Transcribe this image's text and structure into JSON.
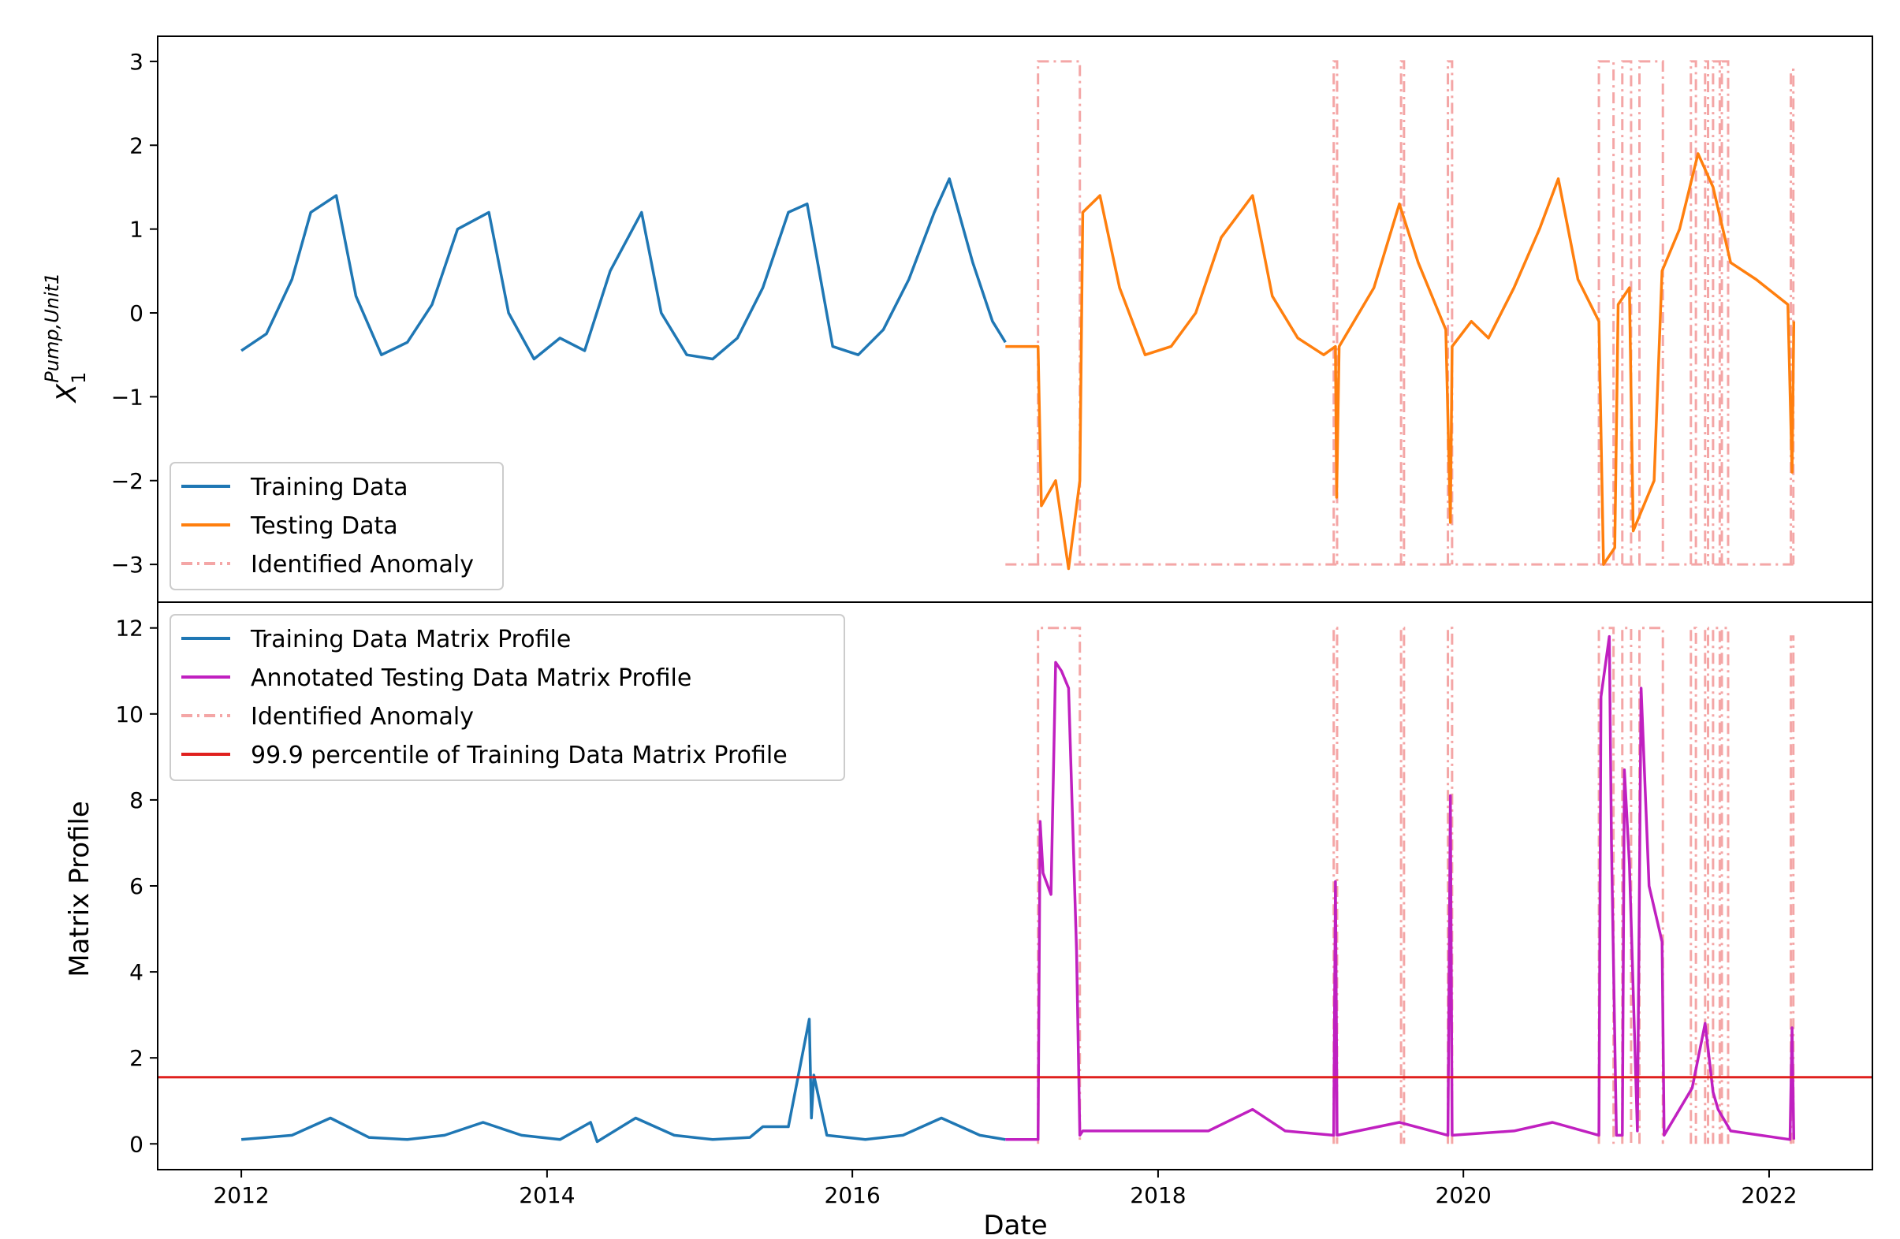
{
  "colors": {
    "training": "#1f77b4",
    "testing": "#ff7f0e",
    "annotated": "#c020c0",
    "anomaly": "#f4a6a6",
    "threshold": "#e0201e"
  },
  "chart_data": [
    {
      "type": "line",
      "panel": "top",
      "xlabel": "",
      "ylabel": "X₁^{Pump,Unit1}",
      "ylabel_base": "X",
      "ylabel_sub": "1",
      "ylabel_sup": "Pump,Unit1",
      "xlim": [
        "2011-06-15",
        "2022-09-05"
      ],
      "ylim": [
        -3.45,
        3.3
      ],
      "yticks": [
        {
          "value": -3,
          "label": "−3"
        },
        {
          "value": -2,
          "label": "−2"
        },
        {
          "value": -1,
          "label": "−1"
        },
        {
          "value": 0,
          "label": "0"
        },
        {
          "value": 1,
          "label": "1"
        },
        {
          "value": 2,
          "label": "2"
        },
        {
          "value": 3,
          "label": "3"
        }
      ],
      "legend_position": "lower-left",
      "legend": [
        {
          "label": "Training Data",
          "style": "solid",
          "color_key": "training"
        },
        {
          "label": "Testing Data",
          "style": "solid",
          "color_key": "testing"
        },
        {
          "label": "Identified Anomaly",
          "style": "dashdot",
          "color_key": "anomaly"
        }
      ],
      "series": [
        {
          "name": "Training Data",
          "color_key": "training",
          "x": [
            "2012-01-01",
            "2012-03-01",
            "2012-05-01",
            "2012-06-15",
            "2012-08-15",
            "2012-10-01",
            "2012-12-01",
            "2013-02-01",
            "2013-04-01",
            "2013-06-01",
            "2013-08-15",
            "2013-10-01",
            "2013-12-01",
            "2014-02-01",
            "2014-04-01",
            "2014-06-01",
            "2014-08-15",
            "2014-10-01",
            "2014-12-01",
            "2015-02-01",
            "2015-04-01",
            "2015-06-01",
            "2015-08-01",
            "2015-09-15",
            "2015-11-15",
            "2016-01-15",
            "2016-03-15",
            "2016-05-15",
            "2016-07-15",
            "2016-08-20",
            "2016-10-15",
            "2016-12-01",
            "2017-01-01"
          ],
          "y": [
            -0.45,
            -0.25,
            0.4,
            1.2,
            1.4,
            0.2,
            -0.5,
            -0.35,
            0.1,
            1.0,
            1.2,
            0.0,
            -0.55,
            -0.3,
            -0.45,
            0.5,
            1.2,
            0.0,
            -0.5,
            -0.55,
            -0.3,
            0.3,
            1.2,
            1.3,
            -0.4,
            -0.5,
            -0.2,
            0.4,
            1.2,
            1.6,
            0.6,
            -0.1,
            -0.35
          ]
        },
        {
          "name": "Testing Data",
          "color_key": "testing",
          "x": [
            "2017-01-01",
            "2017-03-20",
            "2017-03-28",
            "2017-05-01",
            "2017-06-01",
            "2017-06-28",
            "2017-07-05",
            "2017-08-15",
            "2017-10-01",
            "2017-12-01",
            "2018-02-01",
            "2018-04-01",
            "2018-06-01",
            "2018-08-15",
            "2018-10-01",
            "2018-12-01",
            "2019-02-01",
            "2019-03-01",
            "2019-03-04",
            "2019-03-10",
            "2019-06-01",
            "2019-08-01",
            "2019-09-15",
            "2019-11-20",
            "2019-12-01",
            "2019-12-05",
            "2020-01-20",
            "2020-03-01",
            "2020-05-01",
            "2020-07-01",
            "2020-08-15",
            "2020-10-01",
            "2020-11-20",
            "2020-12-01",
            "2020-12-28",
            "2021-01-05",
            "2021-02-01",
            "2021-02-10",
            "2021-04-01",
            "2021-04-20",
            "2021-06-01",
            "2021-07-15",
            "2021-08-20",
            "2021-10-01",
            "2021-12-01",
            "2022-02-15",
            "2022-02-25",
            "2022-03-01"
          ],
          "y": [
            -0.4,
            -0.4,
            -2.3,
            -2.0,
            -3.05,
            -2.0,
            1.2,
            1.4,
            0.3,
            -0.5,
            -0.4,
            0.0,
            0.9,
            1.4,
            0.2,
            -0.3,
            -0.5,
            -0.4,
            -2.2,
            -0.4,
            0.3,
            1.3,
            0.6,
            -0.2,
            -2.5,
            -0.4,
            -0.1,
            -0.3,
            0.3,
            1.0,
            1.6,
            0.4,
            -0.1,
            -3.0,
            -2.8,
            0.1,
            0.3,
            -2.6,
            -2.0,
            0.5,
            1.0,
            1.9,
            1.5,
            0.6,
            0.4,
            0.1,
            -1.9,
            -0.1
          ]
        }
      ],
      "anomaly_windows": [
        {
          "start": "2017-03-20",
          "end": "2017-06-28",
          "top": 3.0
        },
        {
          "start": "2019-02-25",
          "end": "2019-03-05",
          "top": 3.0
        },
        {
          "start": "2019-08-05",
          "end": "2019-08-12",
          "top": 3.0
        },
        {
          "start": "2019-11-25",
          "end": "2019-12-05",
          "top": 3.0
        },
        {
          "start": "2020-11-20",
          "end": "2020-12-25",
          "top": 3.0
        },
        {
          "start": "2021-01-15",
          "end": "2021-02-05",
          "top": 3.0
        },
        {
          "start": "2021-02-25",
          "end": "2021-04-22",
          "top": 3.0
        },
        {
          "start": "2021-06-28",
          "end": "2021-07-10",
          "top": 3.0
        },
        {
          "start": "2021-08-01",
          "end": "2021-08-08",
          "top": 3.0
        },
        {
          "start": "2021-08-20",
          "end": "2021-09-05",
          "top": 3.0
        },
        {
          "start": "2021-09-10",
          "end": "2021-09-25",
          "top": 3.0
        },
        {
          "start": "2022-02-22",
          "end": "2022-02-28",
          "top": 2.9
        }
      ],
      "anomaly_baseline": -3.0
    },
    {
      "type": "line",
      "panel": "bottom",
      "xlabel": "Date",
      "ylabel": "Matrix Profile",
      "xlim": [
        "2011-06-15",
        "2022-09-05"
      ],
      "ylim": [
        -0.6,
        12.6
      ],
      "xticks": [
        {
          "value": "2012-01-01",
          "label": "2012"
        },
        {
          "value": "2014-01-01",
          "label": "2014"
        },
        {
          "value": "2016-01-01",
          "label": "2016"
        },
        {
          "value": "2018-01-01",
          "label": "2018"
        },
        {
          "value": "2020-01-01",
          "label": "2020"
        },
        {
          "value": "2022-01-01",
          "label": "2022"
        }
      ],
      "yticks": [
        {
          "value": 0,
          "label": "0"
        },
        {
          "value": 2,
          "label": "2"
        },
        {
          "value": 4,
          "label": "4"
        },
        {
          "value": 6,
          "label": "6"
        },
        {
          "value": 8,
          "label": "8"
        },
        {
          "value": 10,
          "label": "10"
        },
        {
          "value": 12,
          "label": "12"
        }
      ],
      "legend_position": "upper-left",
      "legend": [
        {
          "label": "Training Data Matrix Profile",
          "style": "solid",
          "color_key": "training"
        },
        {
          "label": "Annotated Testing Data Matrix Profile",
          "style": "solid",
          "color_key": "annotated"
        },
        {
          "label": "Identified Anomaly",
          "style": "dashdot",
          "color_key": "anomaly"
        },
        {
          "label": "99.9 percentile of Training Data Matrix Profile",
          "style": "solid",
          "color_key": "threshold"
        }
      ],
      "threshold": 1.55,
      "series": [
        {
          "name": "Training Data Matrix Profile",
          "color_key": "training",
          "x": [
            "2012-01-01",
            "2012-03-01",
            "2012-05-01",
            "2012-08-01",
            "2012-11-01",
            "2013-02-01",
            "2013-05-01",
            "2013-08-01",
            "2013-11-01",
            "2014-02-01",
            "2014-04-15",
            "2014-05-01",
            "2014-08-01",
            "2014-11-01",
            "2015-02-01",
            "2015-05-01",
            "2015-06-01",
            "2015-08-01",
            "2015-09-20",
            "2015-09-25",
            "2015-10-01",
            "2015-11-01",
            "2016-02-01",
            "2016-05-01",
            "2016-08-01",
            "2016-11-01",
            "2017-01-01"
          ],
          "y": [
            0.1,
            0.15,
            0.2,
            0.6,
            0.15,
            0.1,
            0.2,
            0.5,
            0.2,
            0.1,
            0.5,
            0.05,
            0.6,
            0.2,
            0.1,
            0.15,
            0.4,
            0.4,
            2.9,
            0.6,
            1.6,
            0.2,
            0.1,
            0.2,
            0.6,
            0.2,
            0.1
          ]
        },
        {
          "name": "Annotated Testing Data Matrix Profile",
          "color_key": "annotated",
          "x": [
            "2017-01-01",
            "2017-03-20",
            "2017-03-25",
            "2017-04-01",
            "2017-04-20",
            "2017-05-01",
            "2017-05-15",
            "2017-06-01",
            "2017-06-20",
            "2017-06-28",
            "2017-07-05",
            "2017-10-01",
            "2018-05-01",
            "2018-08-15",
            "2018-11-01",
            "2019-02-25",
            "2019-03-01",
            "2019-03-05",
            "2019-08-01",
            "2019-11-25",
            "2019-12-01",
            "2019-12-05",
            "2020-05-01",
            "2020-08-01",
            "2020-11-20",
            "2020-11-25",
            "2020-12-15",
            "2020-12-20",
            "2021-01-01",
            "2021-01-15",
            "2021-01-20",
            "2021-02-01",
            "2021-02-20",
            "2021-03-01",
            "2021-03-20",
            "2021-04-20",
            "2021-04-25",
            "2021-07-01",
            "2021-08-01",
            "2021-08-20",
            "2021-09-01",
            "2021-10-01",
            "2022-02-20",
            "2022-02-25",
            "2022-03-01"
          ],
          "y": [
            0.1,
            0.1,
            7.5,
            6.3,
            5.8,
            11.2,
            11.0,
            10.6,
            4.5,
            0.2,
            0.3,
            0.3,
            0.3,
            0.8,
            0.3,
            0.2,
            6.1,
            0.2,
            0.5,
            0.2,
            8.1,
            0.2,
            0.3,
            0.5,
            0.2,
            10.4,
            11.8,
            7.0,
            0.2,
            0.2,
            8.7,
            6.5,
            0.3,
            10.6,
            6.0,
            4.7,
            0.2,
            1.3,
            2.8,
            1.2,
            0.8,
            0.3,
            0.1,
            2.7,
            0.1
          ]
        }
      ],
      "anomaly_windows": [
        {
          "start": "2017-03-20",
          "end": "2017-06-28",
          "top": 12.0
        },
        {
          "start": "2019-02-25",
          "end": "2019-03-05",
          "top": 12.0
        },
        {
          "start": "2019-08-05",
          "end": "2019-08-12",
          "top": 12.0
        },
        {
          "start": "2019-11-25",
          "end": "2019-12-05",
          "top": 12.0
        },
        {
          "start": "2020-11-20",
          "end": "2020-12-25",
          "top": 12.0
        },
        {
          "start": "2021-01-15",
          "end": "2021-02-05",
          "top": 12.0
        },
        {
          "start": "2021-02-25",
          "end": "2021-04-22",
          "top": 12.0
        },
        {
          "start": "2021-06-28",
          "end": "2021-07-10",
          "top": 12.0
        },
        {
          "start": "2021-08-01",
          "end": "2021-08-08",
          "top": 12.0
        },
        {
          "start": "2021-08-20",
          "end": "2021-09-05",
          "top": 12.0
        },
        {
          "start": "2021-09-10",
          "end": "2021-09-25",
          "top": 12.0
        },
        {
          "start": "2022-02-22",
          "end": "2022-02-28",
          "top": 11.8
        }
      ],
      "anomaly_baseline": 0.0
    }
  ]
}
